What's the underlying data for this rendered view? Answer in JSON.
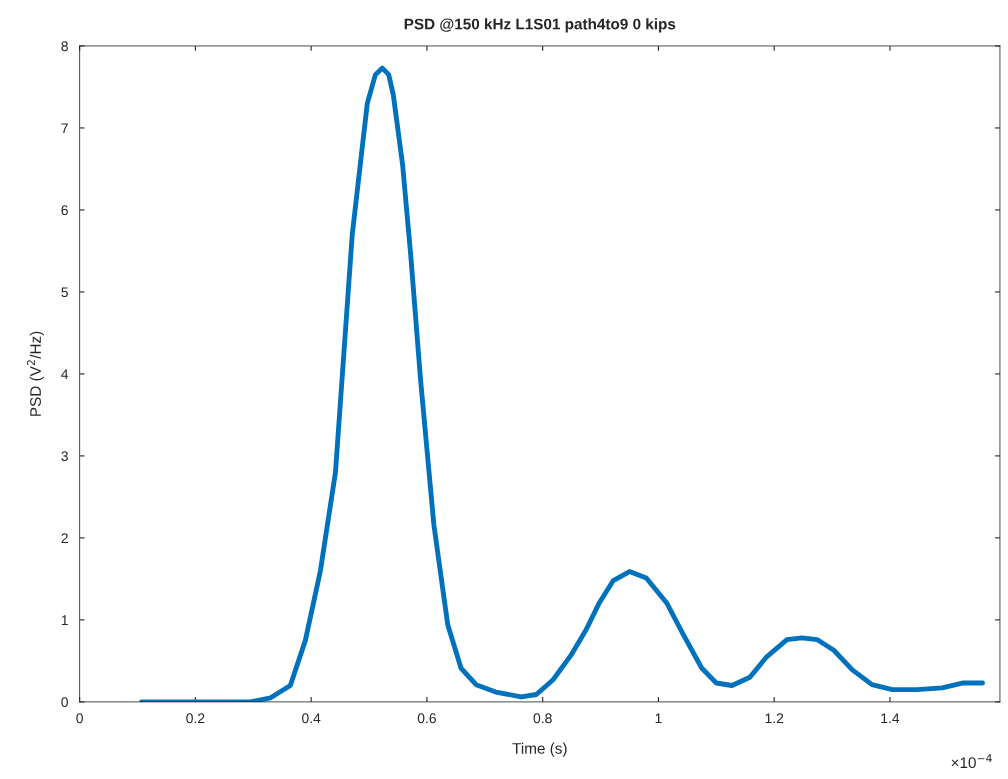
{
  "chart_data": {
    "type": "line",
    "title": "PSD @150 kHz L1S01 path4to9 0 kips",
    "xlabel": "Time (s)",
    "ylabel": "PSD (V$^{2}$/Hz)",
    "annotations": [
      "×10$^{−4}$"
    ],
    "x": [
      0.107,
      0.295,
      0.33,
      0.364,
      0.39,
      0.416,
      0.442,
      0.471,
      0.497,
      0.511,
      0.523,
      0.534,
      0.542,
      0.558,
      0.572,
      0.589,
      0.612,
      0.636,
      0.659,
      0.685,
      0.719,
      0.763,
      0.789,
      0.818,
      0.849,
      0.875,
      0.898,
      0.922,
      0.95,
      0.979,
      1.014,
      1.043,
      1.075,
      1.1,
      1.127,
      1.158,
      1.187,
      1.222,
      1.248,
      1.274,
      1.303,
      1.335,
      1.369,
      1.404,
      1.447,
      1.49,
      1.525,
      1.56
    ],
    "series": [
      {
        "color": "#0072bd",
        "values": [
          0,
          0,
          0.05,
          0.2,
          0.75,
          1.6,
          2.8,
          5.7,
          7.3,
          7.65,
          7.73,
          7.65,
          7.4,
          6.55,
          5.45,
          3.93,
          2.16,
          0.94,
          0.41,
          0.21,
          0.12,
          0.06,
          0.09,
          0.27,
          0.57,
          0.88,
          1.21,
          1.48,
          1.59,
          1.51,
          1.21,
          0.82,
          0.41,
          0.23,
          0.2,
          0.3,
          0.55,
          0.76,
          0.78,
          0.76,
          0.63,
          0.39,
          0.21,
          0.15,
          0.15,
          0.17,
          0.23,
          0.23
        ]
      }
    ],
    "xlim": [
      0,
      1.59
    ],
    "xticks": [
      0,
      0.2,
      0.4,
      0.6,
      0.8,
      1,
      1.2,
      1.4
    ],
    "ylim": [
      0,
      8
    ],
    "yticks": [
      0,
      1,
      2,
      3,
      4,
      5,
      6,
      7,
      8
    ],
    "grid": false,
    "legend": false,
    "marker": "none",
    "line_style": "solid"
  }
}
